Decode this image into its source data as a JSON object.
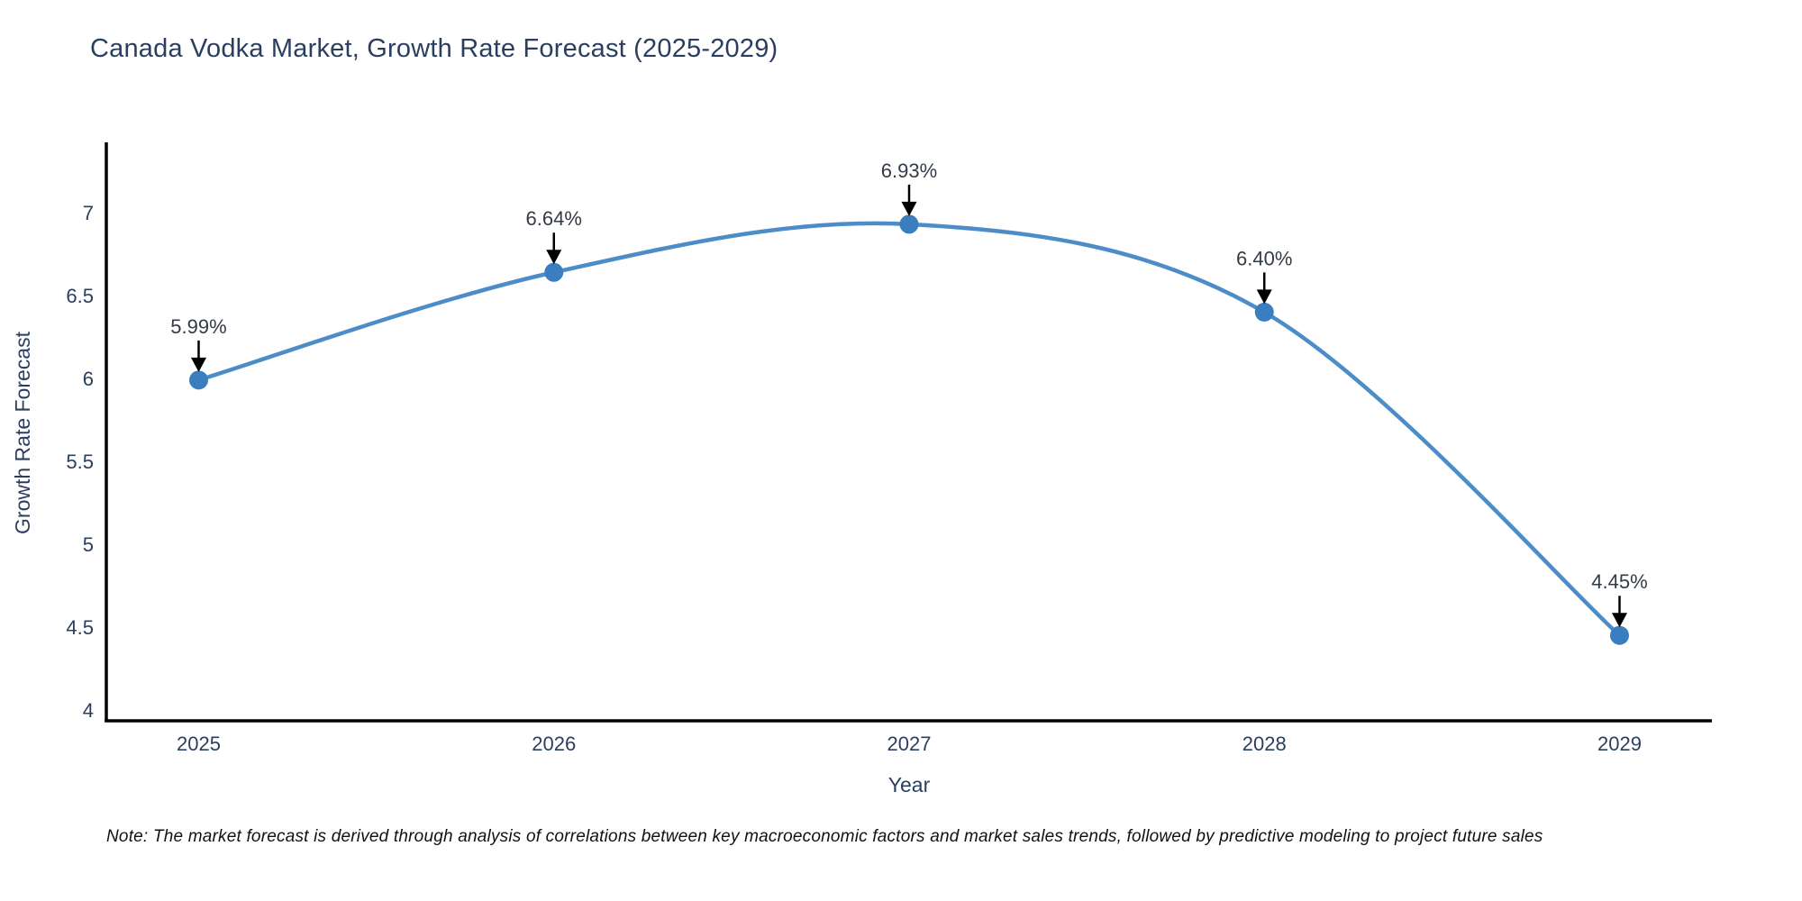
{
  "title": "Canada Vodka Market, Growth Rate Forecast (2025-2029)",
  "note": "Note: The market forecast is derived through analysis of correlations between key macroeconomic factors and market sales trends, followed by predictive modeling to project future sales",
  "colors": {
    "line": "#4c8dc8",
    "marker": "#3a7ebf",
    "axis": "#000000",
    "tick_text": "#2a3f5f",
    "title_text": "#2a3f5f",
    "annotation_text": "#333b47",
    "arrow": "#000000",
    "background": "#ffffff"
  },
  "chart_data": {
    "type": "line",
    "title": "Canada Vodka Market, Growth Rate Forecast (2025-2029)",
    "x": [
      2025,
      2026,
      2027,
      2028,
      2029
    ],
    "y": [
      5.99,
      6.64,
      6.93,
      6.4,
      4.45
    ],
    "point_labels": [
      "5.99%",
      "6.64%",
      "6.93%",
      "6.40%",
      "4.45%"
    ],
    "xlabel": "Year",
    "ylabel": "Growth Rate Forecast",
    "x_tick_labels": [
      "2025",
      "2026",
      "2027",
      "2028",
      "2029"
    ],
    "y_ticks": [
      4,
      4.5,
      5,
      5.5,
      6,
      6.5,
      7
    ],
    "y_tick_labels": [
      "4",
      "4.5",
      "5",
      "5.5",
      "6",
      "6.5",
      "7"
    ],
    "xlim": [
      2024.74,
      2029.26
    ],
    "ylim": [
      3.935,
      7.413
    ],
    "grid": false,
    "legend": "none",
    "line_shape": "spline",
    "annotation_style": "value labels with black down-arrows above each data point"
  }
}
